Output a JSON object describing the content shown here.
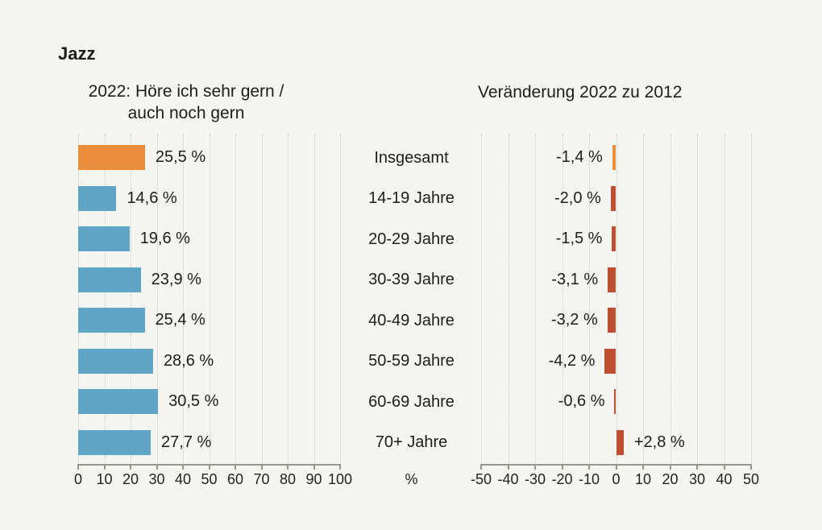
{
  "header": {
    "title": "Jazz"
  },
  "left_chart_title": {
    "line1": "2022: Höre ich sehr gern /",
    "line2": "auch noch gern"
  },
  "categories": [
    "Insgesamt",
    "14-19 Jahre",
    "20-29 Jahre",
    "30-39 Jahre",
    "40-49 Jahre",
    "50-59 Jahre",
    "60-69 Jahre",
    "70+ Jahre"
  ],
  "colors": {
    "highlight_orange": "#EC8D3C",
    "blue": "#5FA5C5",
    "red": "#BE4F30",
    "background": "#F4F4F1",
    "grid": "#C8C8C4",
    "axis": "#96968F",
    "text": "#1D1D1B"
  },
  "chart_data": [
    {
      "type": "bar",
      "orientation": "horizontal",
      "title": "2022: Höre ich sehr gern / auch noch gern",
      "categories": [
        "Insgesamt",
        "14-19 Jahre",
        "20-29 Jahre",
        "30-39 Jahre",
        "40-49 Jahre",
        "50-59 Jahre",
        "60-69 Jahre",
        "70+ Jahre"
      ],
      "values": [
        25.5,
        14.6,
        19.6,
        23.9,
        25.4,
        28.6,
        30.5,
        27.7
      ],
      "value_labels": [
        "25,5 %",
        "14,6 %",
        "19,6 %",
        "23,9 %",
        "25,4 %",
        "28,6 %",
        "30,5 %",
        "27,7 %"
      ],
      "xlim": [
        0,
        100
      ],
      "xticks": [
        0,
        10,
        20,
        30,
        40,
        50,
        60,
        70,
        80,
        90,
        100
      ],
      "xtick_labels": [
        "0",
        "10",
        "20",
        "30",
        "40",
        "50",
        "60",
        "70",
        "80",
        "90",
        "100"
      ],
      "xlabel": "%",
      "grid": "vertical-dotted",
      "legend": "none",
      "bar_color_first": "#EC8D3C",
      "bar_color_default": "#5FA5C5"
    },
    {
      "type": "bar",
      "orientation": "horizontal",
      "title": "Veränderung 2022 zu 2012",
      "categories": [
        "Insgesamt",
        "14-19 Jahre",
        "20-29 Jahre",
        "30-39 Jahre",
        "40-49 Jahre",
        "50-59 Jahre",
        "60-69 Jahre",
        "70+ Jahre"
      ],
      "values": [
        -1.4,
        -2.0,
        -1.5,
        -3.1,
        -3.2,
        -4.2,
        -0.6,
        2.8
      ],
      "value_labels": [
        "-1,4 %",
        "-2,0 %",
        "-1,5 %",
        "-3,1 %",
        "-3,2 %",
        "-4,2 %",
        "-0,6 %",
        "+2,8 %"
      ],
      "xlim": [
        -50,
        50
      ],
      "xticks": [
        -50,
        -40,
        -30,
        -20,
        -10,
        0,
        10,
        20,
        30,
        40,
        50
      ],
      "xtick_labels": [
        "-50",
        "-40",
        "-30",
        "-20",
        "-10",
        "0",
        "10",
        "20",
        "30",
        "40",
        "50"
      ],
      "xlabel": "",
      "grid": "vertical-dotted",
      "legend": "none",
      "bar_color_first": "#EC8D3C",
      "bar_color_default": "#BE4F30"
    }
  ]
}
